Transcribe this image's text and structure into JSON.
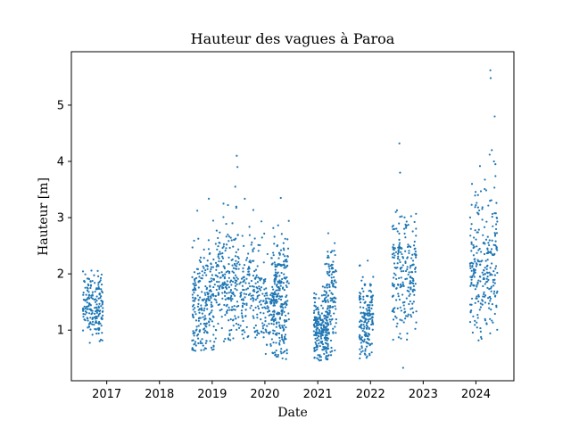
{
  "chart_data": {
    "type": "scatter",
    "title": "Hauteur des vagues à Paroa",
    "xlabel": "Date",
    "ylabel": "Hauteur [m]",
    "x_axis_kind": "date",
    "xlim": [
      "2016-05-01",
      "2024-09-20"
    ],
    "ylim": [
      0.1,
      5.95
    ],
    "x_ticks": [
      "2017",
      "2018",
      "2019",
      "2020",
      "2021",
      "2022",
      "2023",
      "2024"
    ],
    "y_ticks": [
      1,
      2,
      3,
      4,
      5
    ],
    "grid": false,
    "legend": "none",
    "marker_color": "#1f77b4",
    "clusters": [
      {
        "start": "2016-07-20",
        "end": "2016-12-05",
        "center": 1.45,
        "spread": 0.28,
        "min": 0.62,
        "max": 2.56,
        "n": 190
      },
      {
        "start": "2018-08-15",
        "end": "2019-01-20",
        "center": 1.45,
        "spread": 0.52,
        "min": 0.63,
        "max": 3.35,
        "n": 240
      },
      {
        "start": "2019-01-25",
        "end": "2019-07-10",
        "center": 1.85,
        "spread": 0.55,
        "min": 0.8,
        "max": 3.9,
        "n": 220
      },
      {
        "start": "2019-07-15",
        "end": "2019-12-31",
        "center": 1.6,
        "spread": 0.55,
        "min": 0.85,
        "max": 3.4,
        "n": 180
      },
      {
        "start": "2020-01-01",
        "end": "2020-06-05",
        "center": 1.3,
        "spread": 0.45,
        "min": 0.48,
        "max": 3.0,
        "n": 180
      },
      {
        "start": "2020-02-15",
        "end": "2020-06-15",
        "center": 1.75,
        "spread": 0.5,
        "min": 0.75,
        "max": 3.35,
        "n": 140
      },
      {
        "start": "2020-12-05",
        "end": "2021-03-15",
        "center": 1.05,
        "spread": 0.32,
        "min": 0.45,
        "max": 2.2,
        "n": 220
      },
      {
        "start": "2021-02-15",
        "end": "2021-05-10",
        "center": 1.55,
        "spread": 0.5,
        "min": 0.55,
        "max": 2.75,
        "n": 130
      },
      {
        "start": "2021-10-15",
        "end": "2022-01-20",
        "center": 1.15,
        "spread": 0.4,
        "min": 0.48,
        "max": 2.25,
        "n": 180
      },
      {
        "start": "2022-06-01",
        "end": "2022-11-15",
        "center": 2.0,
        "spread": 0.55,
        "min": 0.8,
        "max": 3.2,
        "n": 220
      },
      {
        "start": "2023-11-20",
        "end": "2024-05-30",
        "center": 2.1,
        "spread": 0.65,
        "min": 0.8,
        "max": 4.2,
        "n": 260
      }
    ],
    "outliers": [
      {
        "x": "2019-06-20",
        "y": 4.1
      },
      {
        "x": "2019-06-25",
        "y": 3.9
      },
      {
        "x": "2019-06-10",
        "y": 3.55
      },
      {
        "x": "2020-04-20",
        "y": 3.35
      },
      {
        "x": "2022-07-20",
        "y": 4.32
      },
      {
        "x": "2022-07-25",
        "y": 3.8
      },
      {
        "x": "2022-08-15",
        "y": 0.33
      },
      {
        "x": "2023-12-05",
        "y": 3.6
      },
      {
        "x": "2024-04-10",
        "y": 5.62
      },
      {
        "x": "2024-04-12",
        "y": 5.48
      },
      {
        "x": "2024-05-10",
        "y": 4.8
      },
      {
        "x": "2024-04-20",
        "y": 4.2
      },
      {
        "x": "2024-04-05",
        "y": 4.12
      },
      {
        "x": "2024-05-05",
        "y": 4.0
      },
      {
        "x": "2024-05-15",
        "y": 3.95
      }
    ]
  }
}
